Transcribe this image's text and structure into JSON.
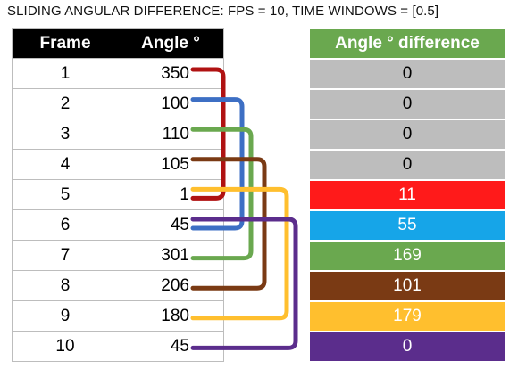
{
  "title": "SLIDING ANGULAR DIFFERENCE: FPS = 10, TIME WINDOWS = [0.5]",
  "table": {
    "header_frame": "Frame",
    "header_angle": "Angle °",
    "rows": [
      {
        "frame": "1",
        "angle": "350"
      },
      {
        "frame": "2",
        "angle": "100"
      },
      {
        "frame": "3",
        "angle": "110"
      },
      {
        "frame": "4",
        "angle": "105"
      },
      {
        "frame": "5",
        "angle": "1"
      },
      {
        "frame": "6",
        "angle": "45"
      },
      {
        "frame": "7",
        "angle": "301"
      },
      {
        "frame": "8",
        "angle": "206"
      },
      {
        "frame": "9",
        "angle": "180"
      },
      {
        "frame": "10",
        "angle": "45"
      }
    ]
  },
  "difference": {
    "header": "Angle ° difference",
    "cells": [
      {
        "value": "0",
        "bg": "#bdbdbd",
        "fg": "#000000"
      },
      {
        "value": "0",
        "bg": "#bdbdbd",
        "fg": "#000000"
      },
      {
        "value": "0",
        "bg": "#bdbdbd",
        "fg": "#000000"
      },
      {
        "value": "0",
        "bg": "#bdbdbd",
        "fg": "#000000"
      },
      {
        "value": "11",
        "bg": "#ff1a1a",
        "fg": "#ffffff"
      },
      {
        "value": "55",
        "bg": "#16a5e8",
        "fg": "#ffffff"
      },
      {
        "value": "169",
        "bg": "#6aa84f",
        "fg": "#ffffff"
      },
      {
        "value": "101",
        "bg": "#7a3a14",
        "fg": "#ffffff"
      },
      {
        "value": "179",
        "bg": "#ffbf2e",
        "fg": "#ffffff"
      },
      {
        "value": "0",
        "bg": "#5b2d8c",
        "fg": "#ffffff"
      }
    ]
  },
  "connectors": [
    {
      "from_frame": 1,
      "to_frame": 5,
      "color": "#b01212"
    },
    {
      "from_frame": 2,
      "to_frame": 6,
      "color": "#3d6fc4"
    },
    {
      "from_frame": 3,
      "to_frame": 7,
      "color": "#6aa84f"
    },
    {
      "from_frame": 4,
      "to_frame": 8,
      "color": "#7a3a14"
    },
    {
      "from_frame": 5,
      "to_frame": 9,
      "color": "#ffbf2e"
    },
    {
      "from_frame": 6,
      "to_frame": 10,
      "color": "#5b2d8c"
    }
  ]
}
